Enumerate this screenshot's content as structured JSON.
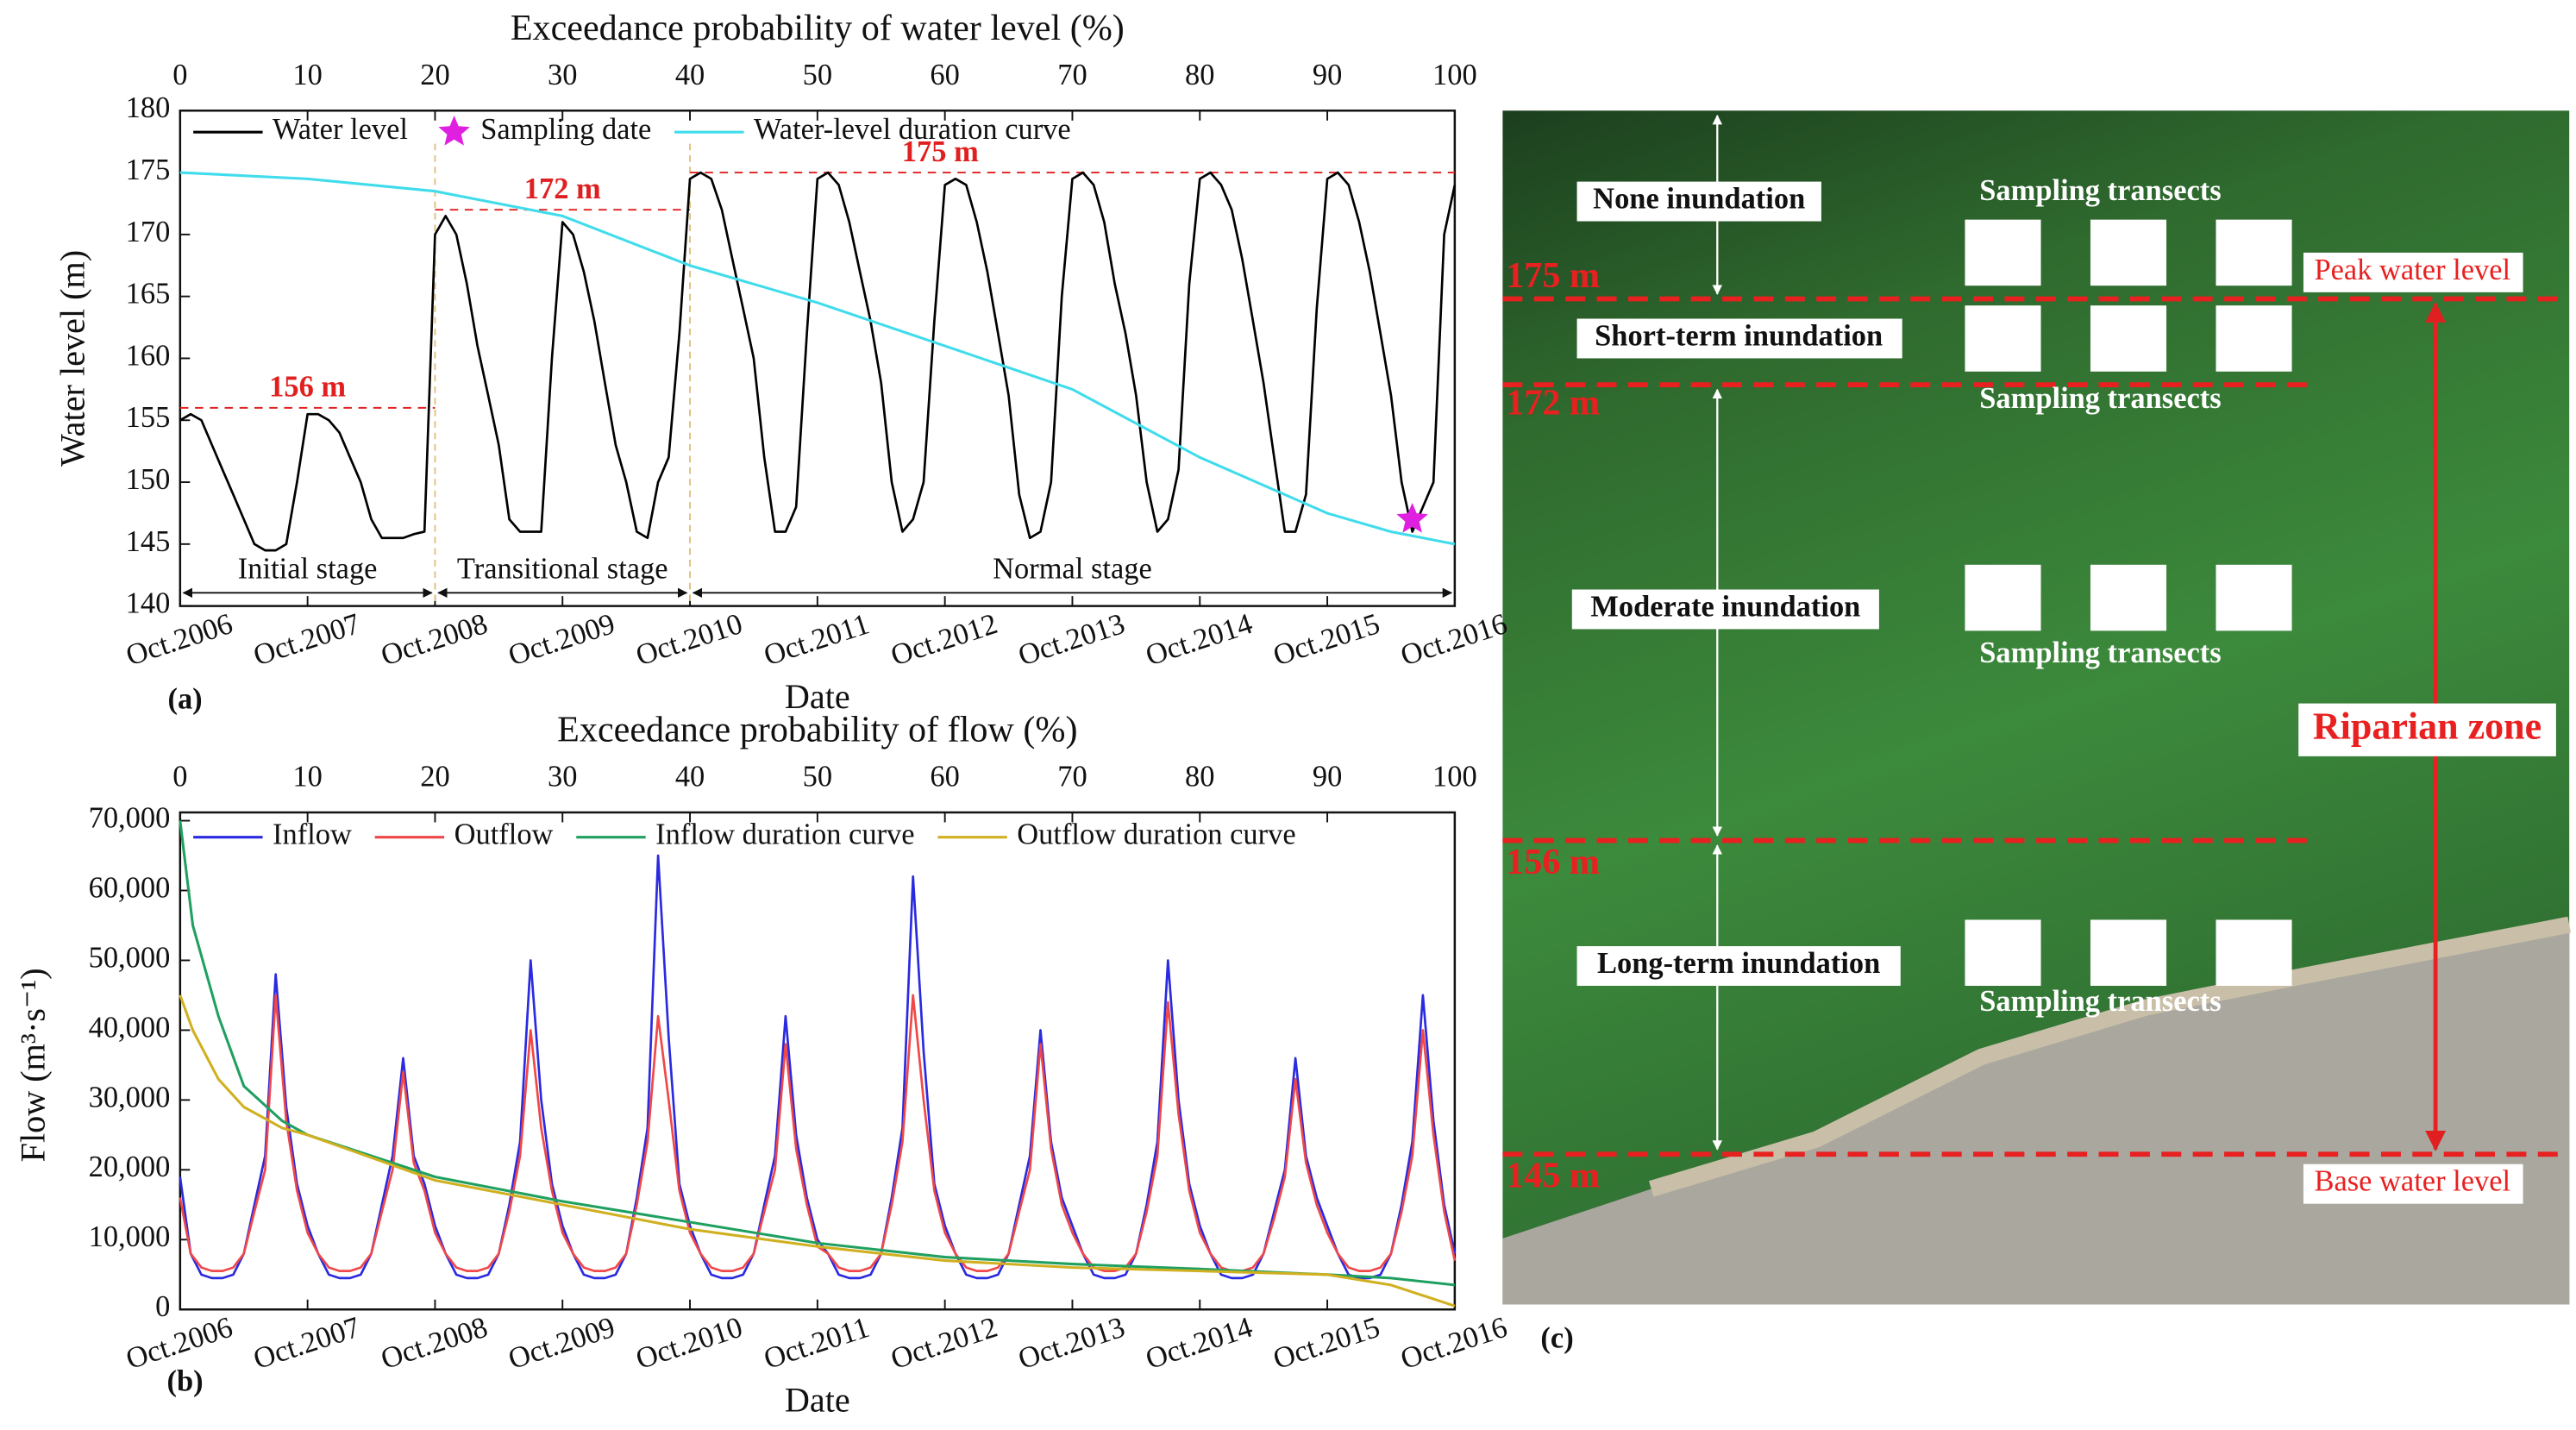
{
  "chart_data": [
    {
      "type": "line",
      "panel_label": "(a)",
      "x2label": "Exceedance probability of water level (%)",
      "xlabel": "Date",
      "ylabel": "Water level (m)",
      "categories": [
        "Oct.2006",
        null,
        null,
        null,
        null,
        null,
        null,
        null,
        null,
        null,
        null,
        null,
        "Oct.2007",
        null,
        null,
        null,
        null,
        null,
        null,
        null,
        null,
        null,
        null,
        null,
        "Oct.2008",
        null,
        null,
        null,
        null,
        null,
        null,
        null,
        null,
        null,
        null,
        null,
        "Oct.2009",
        null,
        null,
        null,
        null,
        null,
        null,
        null,
        null,
        null,
        null,
        null,
        "Oct.2010",
        null,
        null,
        null,
        null,
        null,
        null,
        null,
        null,
        null,
        null,
        null,
        "Oct.2011",
        null,
        null,
        null,
        null,
        null,
        null,
        null,
        null,
        null,
        null,
        null,
        "Oct.2012",
        null,
        null,
        null,
        null,
        null,
        null,
        null,
        null,
        null,
        null,
        null,
        "Oct.2013",
        null,
        null,
        null,
        null,
        null,
        null,
        null,
        null,
        null,
        null,
        null,
        "Oct.2014",
        null,
        null,
        null,
        null,
        null,
        null,
        null,
        null,
        null,
        null,
        null,
        "Oct.2015",
        null,
        null,
        null,
        null,
        null,
        null,
        null,
        null,
        null,
        null,
        null,
        "Oct.2016"
      ],
      "ylim": [
        140,
        180
      ],
      "yticks": [
        140,
        145,
        150,
        155,
        160,
        165,
        170,
        175,
        180
      ],
      "x2lim": [
        0,
        100
      ],
      "x2ticks": [
        0,
        10,
        20,
        30,
        40,
        50,
        60,
        70,
        80,
        90,
        100
      ],
      "legend": "top",
      "series": [
        {
          "name": "Water level",
          "color": "#000000",
          "values": [
            155,
            155.5,
            155,
            153,
            151,
            149,
            147,
            145,
            144.5,
            144.5,
            145,
            150,
            155.5,
            155.5,
            155,
            154,
            152,
            150,
            147,
            145.5,
            145.5,
            145.5,
            145.8,
            146,
            170,
            171.5,
            170,
            166,
            161,
            157,
            153,
            147,
            146,
            146,
            146,
            160,
            171,
            170,
            167,
            163,
            158,
            153,
            150,
            146,
            145.5,
            150,
            152,
            162,
            174.5,
            175,
            174.5,
            172,
            168,
            164,
            160,
            152,
            146,
            146,
            148,
            162,
            174.5,
            175,
            174,
            171,
            167,
            163,
            158,
            150,
            146,
            147,
            150,
            163,
            174,
            174.5,
            174,
            171,
            167,
            162,
            157,
            149,
            145.5,
            146,
            150,
            165,
            174.5,
            175,
            174,
            171,
            166,
            162,
            157,
            150,
            146,
            147,
            151,
            166,
            174.5,
            175,
            174,
            172,
            168,
            163,
            158,
            152,
            146,
            146,
            149,
            164,
            174.5,
            175,
            174,
            171,
            167,
            162,
            157,
            150,
            146,
            148,
            150,
            170,
            174
          ]
        },
        {
          "name": "Sampling date",
          "color": "#e020e0",
          "marker": "star",
          "values": [
            null,
            null,
            null,
            null,
            null,
            null,
            null,
            null,
            null,
            null,
            null,
            null,
            null,
            null,
            null,
            null,
            null,
            null,
            null,
            null,
            null,
            null,
            null,
            null,
            null,
            null,
            null,
            null,
            null,
            null,
            null,
            null,
            null,
            null,
            null,
            null,
            null,
            null,
            null,
            null,
            null,
            null,
            null,
            null,
            null,
            null,
            null,
            null,
            null,
            null,
            null,
            null,
            null,
            null,
            null,
            null,
            null,
            null,
            null,
            null,
            null,
            null,
            null,
            null,
            null,
            null,
            null,
            null,
            null,
            null,
            null,
            null,
            null,
            null,
            null,
            null,
            null,
            null,
            null,
            null,
            null,
            null,
            null,
            null,
            null,
            null,
            null,
            null,
            null,
            null,
            null,
            null,
            null,
            null,
            null,
            null,
            null,
            null,
            null,
            null,
            null,
            null,
            null,
            null,
            null,
            null,
            null,
            null,
            null,
            null,
            null,
            null,
            null,
            null,
            null,
            null,
            147,
            null,
            null,
            null,
            null
          ]
        },
        {
          "name": "Water-level duration curve",
          "color": "#40dcec",
          "axis": "x2",
          "x": [
            0,
            10,
            20,
            30,
            40,
            50,
            60,
            70,
            80,
            90,
            95,
            100
          ],
          "values": [
            175,
            174.5,
            173.5,
            171.5,
            167.5,
            164.5,
            161,
            157.5,
            152,
            147.5,
            146,
            145
          ]
        }
      ],
      "levels": [
        {
          "label": "156 m",
          "value": 156,
          "from": "Oct.2006",
          "to": "Oct.2008"
        },
        {
          "label": "172 m",
          "value": 172,
          "from": "Oct.2008",
          "to": "Oct.2010"
        },
        {
          "label": "175 m",
          "value": 175,
          "from": "Oct.2010",
          "to": "Oct.2016"
        }
      ],
      "stages": [
        {
          "label": "Initial stage",
          "from": "Oct.2006",
          "to": "Oct.2008"
        },
        {
          "label": "Transitional stage",
          "from": "Oct.2008",
          "to": "Oct.2010"
        },
        {
          "label": "Normal stage",
          "from": "Oct.2010",
          "to": "Oct.2016"
        }
      ]
    },
    {
      "type": "line",
      "panel_label": "(b)",
      "x2label": "Exceedance probability of flow (%)",
      "xlabel": "Date",
      "ylabel": "Flow (m³·s⁻¹)",
      "categories": [
        "Oct.2006",
        null,
        null,
        null,
        null,
        null,
        null,
        null,
        null,
        null,
        null,
        null,
        "Oct.2007",
        null,
        null,
        null,
        null,
        null,
        null,
        null,
        null,
        null,
        null,
        null,
        "Oct.2008",
        null,
        null,
        null,
        null,
        null,
        null,
        null,
        null,
        null,
        null,
        null,
        "Oct.2009",
        null,
        null,
        null,
        null,
        null,
        null,
        null,
        null,
        null,
        null,
        null,
        "Oct.2010",
        null,
        null,
        null,
        null,
        null,
        null,
        null,
        null,
        null,
        null,
        null,
        "Oct.2011",
        null,
        null,
        null,
        null,
        null,
        null,
        null,
        null,
        null,
        null,
        null,
        "Oct.2012",
        null,
        null,
        null,
        null,
        null,
        null,
        null,
        null,
        null,
        null,
        null,
        "Oct.2013",
        null,
        null,
        null,
        null,
        null,
        null,
        null,
        null,
        null,
        null,
        null,
        "Oct.2014",
        null,
        null,
        null,
        null,
        null,
        null,
        null,
        null,
        null,
        null,
        null,
        "Oct.2015",
        null,
        null,
        null,
        null,
        null,
        null,
        null,
        null,
        null,
        null,
        null,
        "Oct.2016"
      ],
      "ylim": [
        0,
        70000
      ],
      "yticks": [
        0,
        {
          "value": 10000,
          "label": "10,000"
        },
        {
          "value": 20000,
          "label": "20,000"
        },
        {
          "value": 30000,
          "label": "30,000"
        },
        {
          "value": 40000,
          "label": "40,000"
        },
        {
          "value": 50000,
          "label": "50,000"
        },
        {
          "value": 60000,
          "label": "60,000"
        },
        {
          "value": 70000,
          "label": "70,000"
        }
      ],
      "x2lim": [
        0,
        100
      ],
      "x2ticks": [
        0,
        10,
        20,
        30,
        40,
        50,
        60,
        70,
        80,
        90,
        100
      ],
      "legend": "top",
      "series": [
        {
          "name": "Inflow",
          "color": "#2a2ae0",
          "values": [
            19000,
            8000,
            5000,
            4500,
            4500,
            5000,
            8000,
            15000,
            22000,
            48000,
            29000,
            18000,
            12000,
            8000,
            5000,
            4500,
            4500,
            5000,
            8000,
            15000,
            22000,
            36000,
            22000,
            18000,
            12000,
            8000,
            5000,
            4500,
            4500,
            5000,
            8000,
            15000,
            24000,
            50000,
            30000,
            18000,
            12000,
            8000,
            5000,
            4500,
            4500,
            5000,
            8000,
            16000,
            26000,
            65000,
            39000,
            18000,
            12000,
            8000,
            5000,
            4500,
            4500,
            5000,
            8000,
            15000,
            22000,
            42000,
            25000,
            16000,
            10000,
            8000,
            5000,
            4500,
            4500,
            5000,
            8000,
            16000,
            26000,
            62000,
            37000,
            18000,
            12000,
            8000,
            5000,
            4500,
            4500,
            5000,
            8000,
            15000,
            22000,
            40000,
            24000,
            16000,
            12000,
            8000,
            5000,
            4500,
            4500,
            5000,
            8000,
            15000,
            24000,
            50000,
            30000,
            18000,
            12000,
            8000,
            5000,
            4500,
            4500,
            5000,
            8000,
            14000,
            20000,
            36000,
            22000,
            16000,
            12000,
            8000,
            5000,
            4500,
            4500,
            5000,
            8000,
            15000,
            24000,
            45000,
            27000,
            15000,
            8000
          ]
        },
        {
          "name": "Outflow",
          "color": "#f04848",
          "values": [
            16000,
            8000,
            6000,
            5500,
            5500,
            6000,
            8000,
            14000,
            20000,
            45000,
            27000,
            17000,
            11000,
            8000,
            6000,
            5500,
            5500,
            6000,
            8000,
            14000,
            20000,
            34000,
            21000,
            17000,
            11000,
            8000,
            6000,
            5500,
            5500,
            6000,
            8000,
            14000,
            22000,
            40000,
            26000,
            17000,
            11000,
            8000,
            6000,
            5500,
            5500,
            6000,
            8000,
            15000,
            24000,
            42000,
            30000,
            17000,
            11000,
            8000,
            6000,
            5500,
            5500,
            6000,
            8000,
            14000,
            20000,
            38000,
            23000,
            15000,
            9000,
            8000,
            6000,
            5500,
            5500,
            6000,
            8000,
            15000,
            24000,
            45000,
            30000,
            17000,
            11000,
            8000,
            6000,
            5500,
            5500,
            6000,
            8000,
            14000,
            20000,
            38000,
            23000,
            15000,
            11000,
            8000,
            6000,
            5500,
            5500,
            6000,
            8000,
            14000,
            22000,
            44000,
            28000,
            17000,
            11000,
            8000,
            6000,
            5500,
            5500,
            6000,
            8000,
            13000,
            19000,
            33000,
            21000,
            15000,
            11000,
            8000,
            6000,
            5500,
            5500,
            6000,
            8000,
            14000,
            22000,
            40000,
            25000,
            14000,
            7000
          ]
        },
        {
          "name": "Inflow duration curve",
          "color": "#20a060",
          "axis": "x2",
          "x": [
            0,
            1,
            3,
            5,
            8,
            10,
            20,
            30,
            40,
            50,
            60,
            70,
            80,
            90,
            95,
            100
          ],
          "values": [
            70000,
            55000,
            42000,
            32000,
            27000,
            25000,
            19000,
            15500,
            12500,
            9500,
            7500,
            6500,
            5800,
            5000,
            4500,
            3500
          ]
        },
        {
          "name": "Outflow duration curve",
          "color": "#d0b020",
          "axis": "x2",
          "x": [
            0,
            1,
            3,
            5,
            8,
            10,
            20,
            30,
            40,
            50,
            60,
            70,
            80,
            90,
            95,
            100
          ],
          "values": [
            45000,
            40000,
            33000,
            29000,
            26000,
            25000,
            18500,
            15000,
            11500,
            9000,
            7000,
            6000,
            5500,
            5000,
            3500,
            500
          ]
        }
      ]
    }
  ],
  "panel_c": {
    "label": "(c)",
    "zones": [
      "None inundation",
      "Short-term inundation",
      "Moderate inundation",
      "Long-term inundation"
    ],
    "levels": [
      "175 m",
      "172 m",
      "156 m",
      "145 m"
    ],
    "transects": [
      "Sampling transects",
      "Sampling transects",
      "Sampling transects",
      "Sampling transects"
    ],
    "peak": "Peak water level",
    "base": "Base water level",
    "zone": "Riparian zone"
  }
}
